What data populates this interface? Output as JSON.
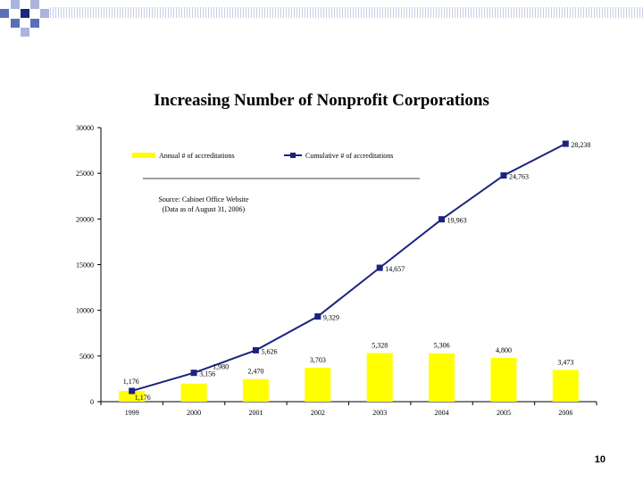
{
  "slide": {
    "title": "Increasing Number of Nonprofit Corporations",
    "page_number": "10",
    "colors": {
      "accent_dark": "#1a2a7a",
      "accent_mid": "#5b6fb8",
      "accent_light": "#aab4dc",
      "rule": "#c8cee8",
      "bar_fill": "#ffff00",
      "line": "#1a237e"
    }
  },
  "chart_data": {
    "type": "bar",
    "categories": [
      "1999",
      "2000",
      "2001",
      "2002",
      "2003",
      "2004",
      "2005",
      "2006"
    ],
    "series": [
      {
        "name": "Annual # of accreditations",
        "kind": "bar",
        "values": [
          1176,
          1980,
          2470,
          3703,
          5328,
          5306,
          4800,
          3473
        ],
        "labels": [
          "1,176",
          "1,980",
          "2,470",
          "3,703",
          "5,328",
          "5,306",
          "4,800",
          "3,473"
        ]
      },
      {
        "name": "Cumulative # of accreditations",
        "kind": "line",
        "values": [
          1176,
          3156,
          5626,
          9329,
          14657,
          19963,
          24763,
          28238
        ],
        "labels": [
          "1,176",
          "3,156",
          "5,626",
          "9,329",
          "14,657",
          "19,963",
          "24,763",
          "28,238"
        ]
      }
    ],
    "yticks": [
      "0",
      "5000",
      "10000",
      "15000",
      "20000",
      "25000",
      "30000"
    ],
    "ylim": [
      0,
      30000
    ],
    "source_note": [
      "Source: Cabinet Office Website",
      "(Data as of August 31, 2006)"
    ],
    "legend_position": "top"
  }
}
